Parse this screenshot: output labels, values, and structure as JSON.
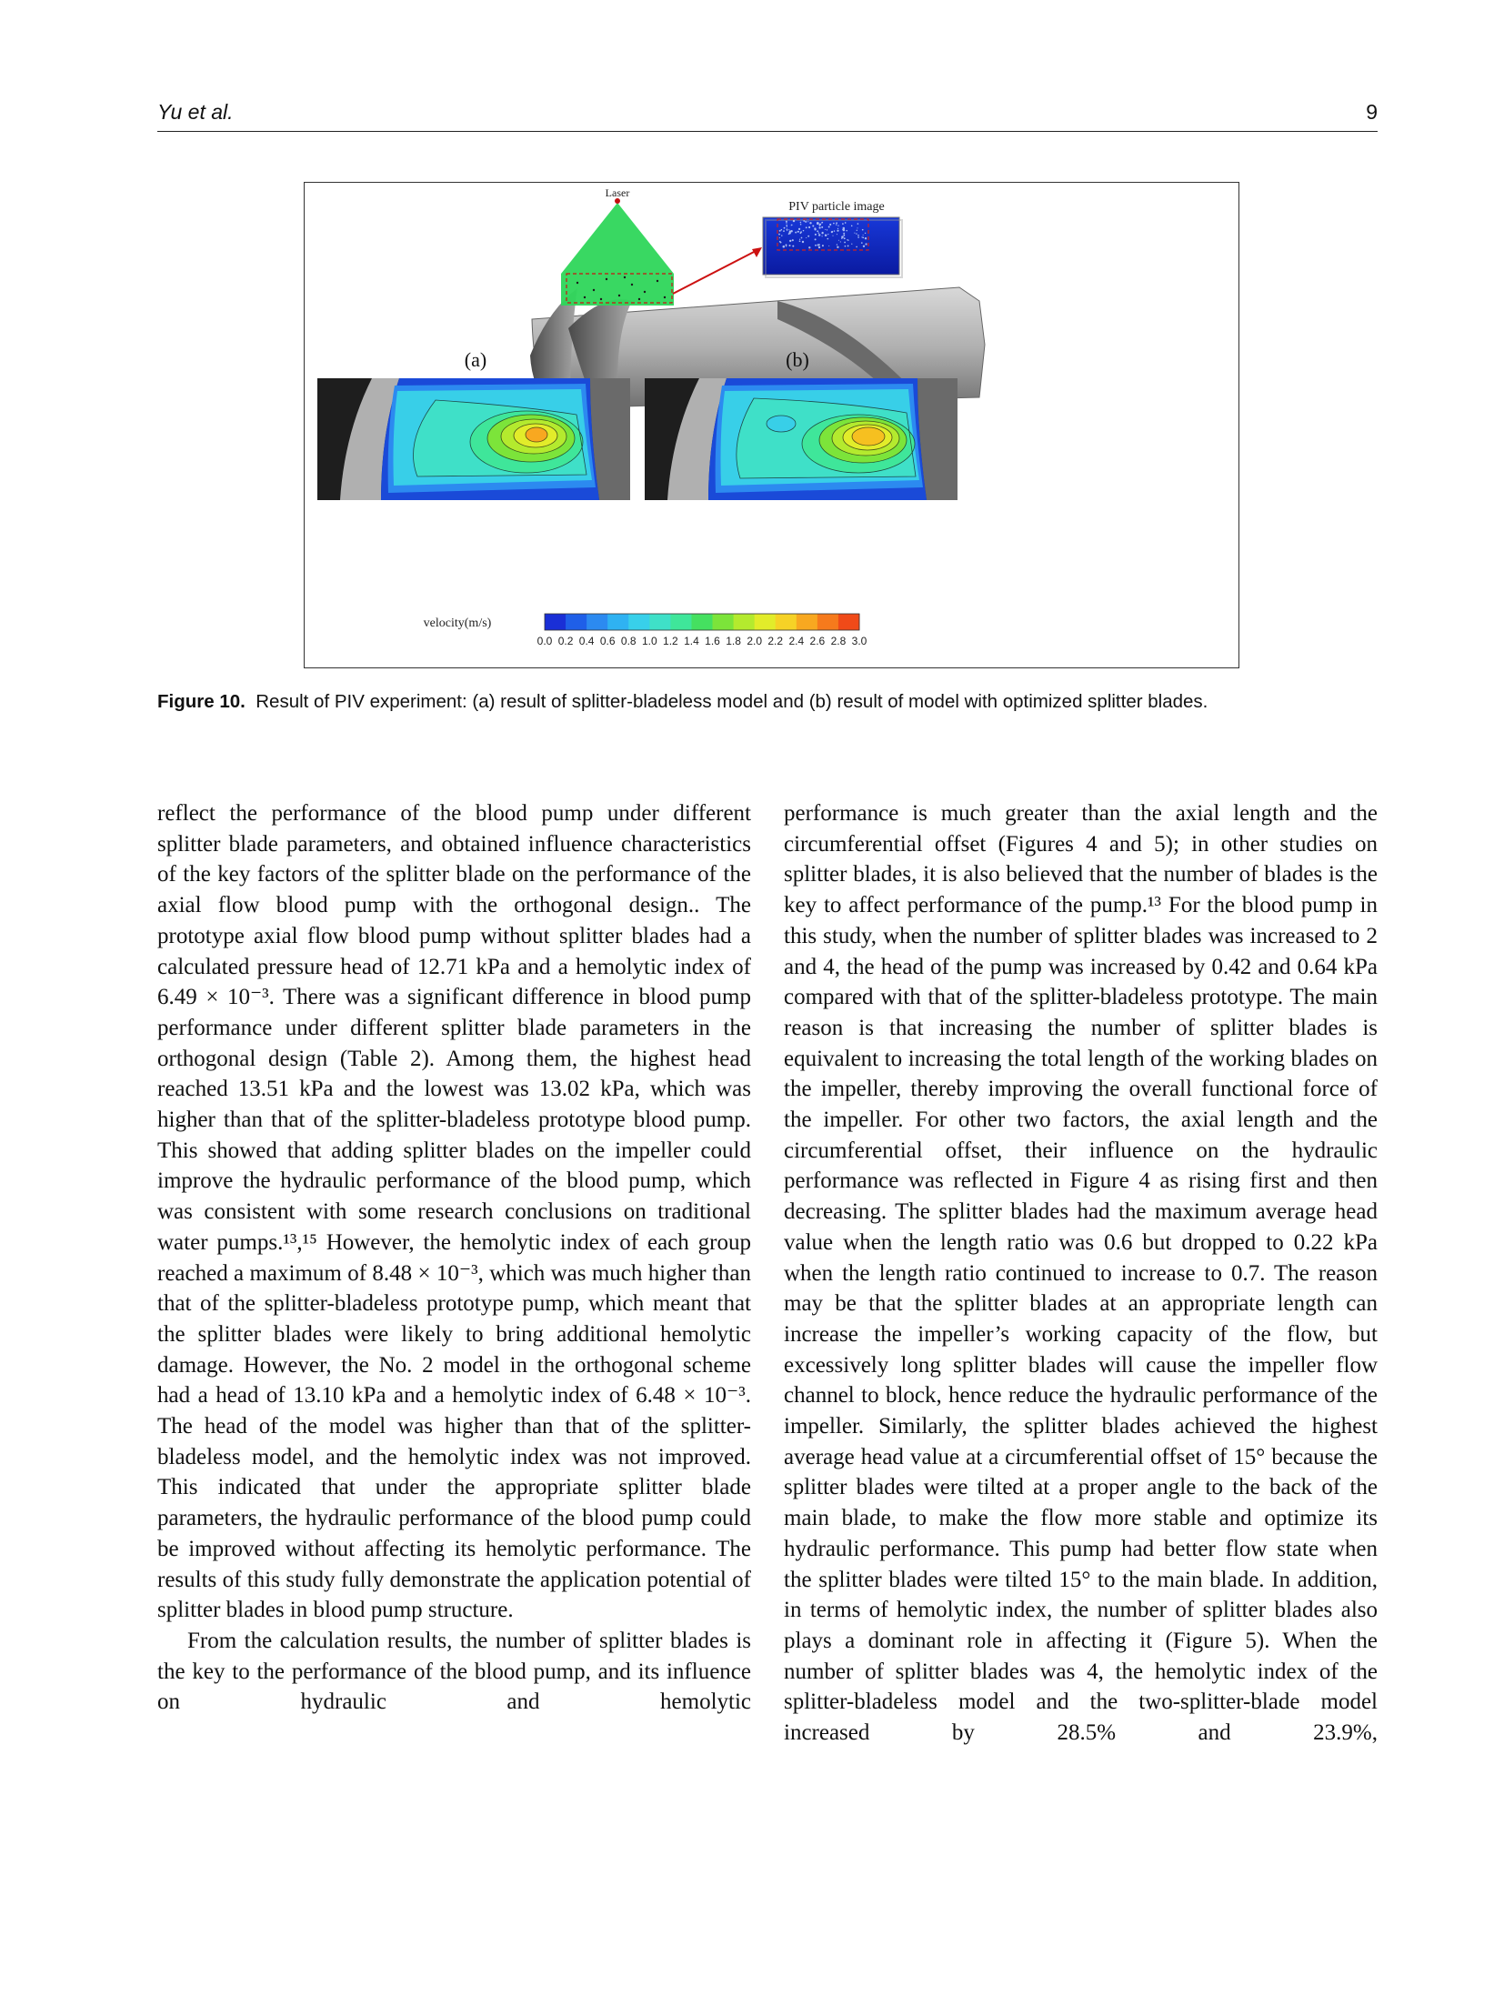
{
  "running_head": {
    "authors": "Yu et al.",
    "page_number": "9"
  },
  "figure": {
    "laser_label": "Laser",
    "piv_label": "PIV particle image",
    "panel_a_label": "(a)",
    "panel_b_label": "(b)",
    "colorbar_label": "velocity(m/s)",
    "colorbar_ticks": [
      "0.0",
      "0.2",
      "0.4",
      "0.6",
      "0.8",
      "1.0",
      "1.2",
      "1.4",
      "1.6",
      "1.8",
      "2.0",
      "2.2",
      "2.4",
      "2.6",
      "2.8",
      "3.0"
    ],
    "colorbar_colors": [
      "#1a2fd6",
      "#1f5fe8",
      "#2c8af0",
      "#2fb2f2",
      "#38d0ea",
      "#3fe0c8",
      "#3fe69a",
      "#45e060",
      "#7ce43a",
      "#b4ea2e",
      "#e2ec2a",
      "#f6d226",
      "#f8a820",
      "#f67a1c",
      "#f04a18"
    ],
    "caption_label": "Figure 10.",
    "caption_text": "Result of PIV experiment: (a) result of splitter-bladeless model and (b) result of model with optimized splitter blades."
  },
  "body": {
    "left_col": {
      "p1": "reflect the performance of the blood pump under different splitter blade parameters, and obtained influence characteristics of the key factors of the splitter blade on the performance of the axial flow blood pump with the orthogonal design.. The prototype axial flow blood pump without splitter blades had a calculated pressure head of 12.71 kPa and a hemolytic index of 6.49 × 10⁻³. There was a significant difference in blood pump performance under different splitter blade parameters in the orthogonal design (Table 2). Among them, the highest head reached 13.51 kPa and the lowest was 13.02 kPa, which was higher than that of the splitter-bladeless prototype blood pump. This showed that adding splitter blades on the impeller could improve the hydraulic performance of the blood pump, which was consistent with some research conclusions on traditional water pumps.¹³,¹⁵ However, the hemolytic index of each group reached a maximum of 8.48 × 10⁻³, which was much higher than that of the splitter-bladeless prototype pump, which meant that the splitter blades were likely to bring additional hemolytic damage. However, the No. 2 model in the orthogonal scheme had a head of 13.10 kPa and a hemolytic index of 6.48 × 10⁻³. The head of the model was higher than that of the splitter-bladeless model, and the hemolytic index was not improved. This indicated that under the appropriate splitter blade parameters, the hydraulic performance of the blood pump could be improved without affecting its hemolytic performance. The results of this study fully demonstrate the application potential of splitter blades in blood pump structure.",
      "p2": "From the calculation results, the number of splitter blades is the key to the performance of the blood pump, and its influence on hydraulic and hemolytic"
    },
    "right_col": {
      "p1": "performance is much greater than the axial length and the circumferential offset (Figures 4 and 5); in other studies on splitter blades, it is also believed that the number of blades is the key to affect performance of the pump.¹³ For the blood pump in this study, when the number of splitter blades was increased to 2 and 4, the head of the pump was increased by 0.42 and 0.64 kPa compared with that of the splitter-bladeless prototype. The main reason is that increasing the number of splitter blades is equivalent to increasing the total length of the working blades on the impeller, thereby improving the overall functional force of the impeller. For other two factors, the axial length and the circumferential offset, their influence on the hydraulic performance was reflected in Figure 4 as rising first and then decreasing. The splitter blades had the maximum average head value when the length ratio was 0.6 but dropped to 0.22 kPa when the length ratio continued to increase to 0.7. The reason may be that the splitter blades at an appropriate length can increase the impeller’s working capacity of the flow, but excessively long splitter blades will cause the impeller flow channel to block, hence reduce the hydraulic performance of the impeller. Similarly, the splitter blades achieved the highest average head value at a circumferential offset of 15° because the splitter blades were tilted at a proper angle to the back of the main blade, to make the flow more stable and optimize its hydraulic performance. This pump had better flow state when the splitter blades were tilted 15° to the main blade. In addition, in terms of hemolytic index, the number of splitter blades also plays a dominant role in affecting it (Figure 5). When the number of splitter blades was 4, the hemolytic index of the splitter-bladeless model and the two-splitter-blade model increased by 28.5% and 23.9%,"
    }
  }
}
